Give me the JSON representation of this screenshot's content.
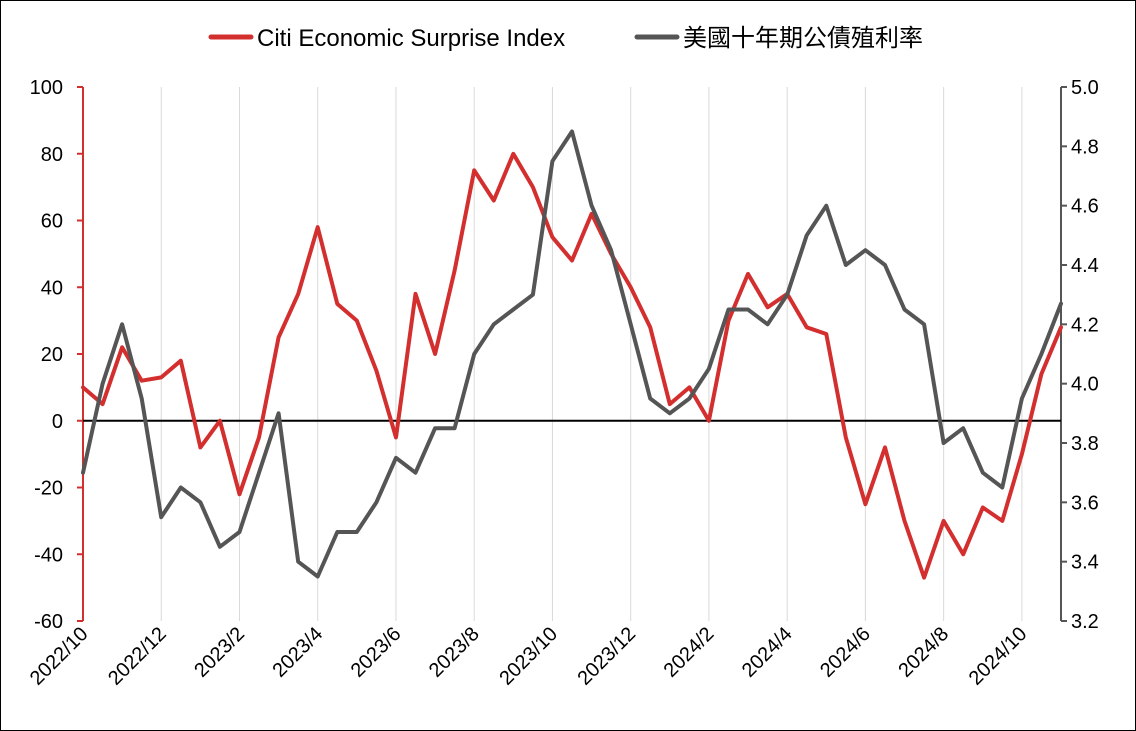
{
  "chart_data": {
    "type": "line",
    "title": "",
    "grid": "vertical",
    "legend": {
      "placement": "top-center",
      "items": [
        {
          "label": "Citi Economic Surprise Index",
          "color": "#d32f2f"
        },
        {
          "label": "美國十年期公債殖利率",
          "color": "#555555"
        }
      ]
    },
    "x_ticks": [
      "2022/10",
      "2022/12",
      "2023/2",
      "2023/4",
      "2023/6",
      "2023/8",
      "2023/10",
      "2023/12",
      "2024/2",
      "2024/4",
      "2024/6",
      "2024/8",
      "2024/10"
    ],
    "x_range": [
      "2022/10",
      "2024/11"
    ],
    "y_left": {
      "min": -60,
      "max": 100,
      "ticks": [
        "100",
        "80",
        "60",
        "40",
        "20",
        "0",
        "-20",
        "-40",
        "-60"
      ]
    },
    "y_right": {
      "min": 3.2,
      "max": 5.0,
      "ticks": [
        "5.0",
        "4.8",
        "4.6",
        "4.4",
        "4.2",
        "4.0",
        "3.8",
        "3.6",
        "3.4",
        "3.2"
      ]
    },
    "series": [
      {
        "name": "Citi Economic Surprise Index",
        "axis": "left",
        "color": "#d32f2f",
        "x": [
          "2022/10",
          "2022/10.5",
          "2022/11",
          "2022/11.5",
          "2022/12",
          "2022/12.5",
          "2023/1",
          "2023/1.5",
          "2023/2",
          "2023/2.5",
          "2023/3",
          "2023/3.5",
          "2023/4",
          "2023/4.5",
          "2023/5",
          "2023/5.5",
          "2023/6",
          "2023/6.5",
          "2023/7",
          "2023/7.5",
          "2023/8",
          "2023/8.5",
          "2023/9",
          "2023/9.5",
          "2023/10",
          "2023/10.5",
          "2023/11",
          "2023/11.5",
          "2023/12",
          "2023/12.5",
          "2024/1",
          "2024/1.5",
          "2024/2",
          "2024/2.5",
          "2024/3",
          "2024/3.5",
          "2024/4",
          "2024/4.5",
          "2024/5",
          "2024/5.5",
          "2024/6",
          "2024/6.5",
          "2024/7",
          "2024/7.5",
          "2024/8",
          "2024/8.5",
          "2024/9",
          "2024/9.5",
          "2024/10",
          "2024/10.5",
          "2024/11"
        ],
        "values": [
          10,
          5,
          22,
          12,
          13,
          18,
          -8,
          0,
          -22,
          -5,
          25,
          38,
          58,
          35,
          30,
          15,
          -5,
          38,
          20,
          45,
          75,
          66,
          80,
          70,
          55,
          48,
          62,
          50,
          40,
          28,
          5,
          10,
          0,
          30,
          44,
          34,
          38,
          28,
          26,
          -5,
          -25,
          -8,
          -30,
          -47,
          -30,
          -40,
          -26,
          -30,
          -10,
          14,
          28
        ]
      },
      {
        "name": "美國十年期公債殖利率",
        "axis": "right",
        "color": "#555555",
        "x": [
          "2022/10",
          "2022/10.5",
          "2022/11",
          "2022/11.5",
          "2022/12",
          "2022/12.5",
          "2023/1",
          "2023/1.5",
          "2023/2",
          "2023/2.5",
          "2023/3",
          "2023/3.5",
          "2023/4",
          "2023/4.5",
          "2023/5",
          "2023/5.5",
          "2023/6",
          "2023/6.5",
          "2023/7",
          "2023/7.5",
          "2023/8",
          "2023/8.5",
          "2023/9",
          "2023/9.5",
          "2023/10",
          "2023/10.5",
          "2023/11",
          "2023/11.5",
          "2023/12",
          "2023/12.5",
          "2024/1",
          "2024/1.5",
          "2024/2",
          "2024/2.5",
          "2024/3",
          "2024/3.5",
          "2024/4",
          "2024/4.5",
          "2024/5",
          "2024/5.5",
          "2024/6",
          "2024/6.5",
          "2024/7",
          "2024/7.5",
          "2024/8",
          "2024/8.5",
          "2024/9",
          "2024/9.5",
          "2024/10",
          "2024/10.5",
          "2024/11"
        ],
        "values": [
          3.7,
          4.0,
          4.2,
          3.95,
          3.55,
          3.65,
          3.6,
          3.45,
          3.5,
          3.7,
          3.9,
          3.4,
          3.35,
          3.5,
          3.5,
          3.6,
          3.75,
          3.7,
          3.85,
          3.85,
          4.1,
          4.2,
          4.25,
          4.3,
          4.75,
          4.85,
          4.6,
          4.45,
          4.2,
          3.95,
          3.9,
          3.95,
          4.05,
          4.25,
          4.25,
          4.2,
          4.3,
          4.5,
          4.6,
          4.4,
          4.45,
          4.4,
          4.25,
          4.2,
          3.8,
          3.85,
          3.7,
          3.65,
          3.95,
          4.1,
          4.27
        ]
      }
    ]
  }
}
